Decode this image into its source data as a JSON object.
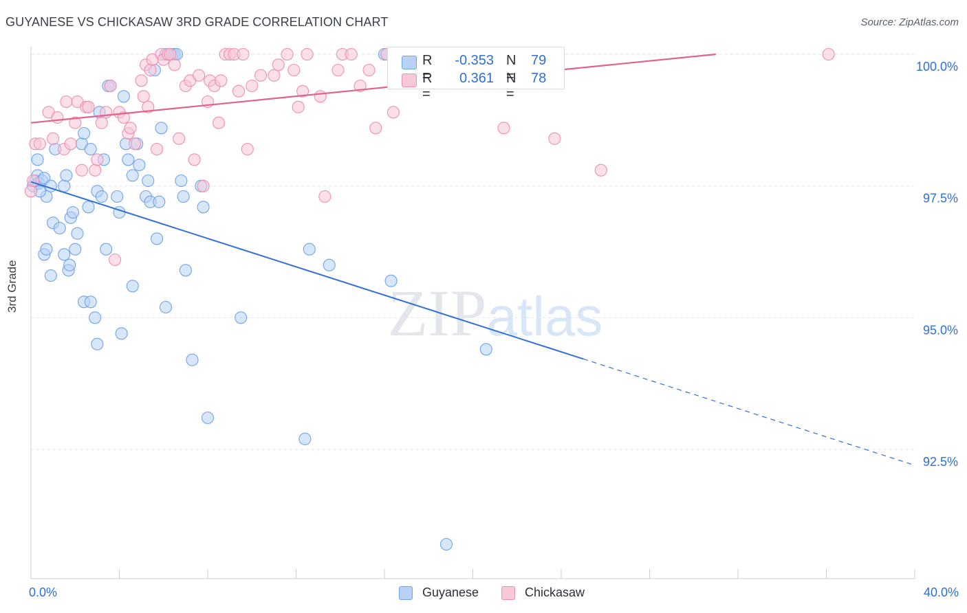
{
  "header": {
    "title": "GUYANESE VS CHICKASAW 3RD GRADE CORRELATION CHART",
    "source": "Source: ZipAtlas.com"
  },
  "colors": {
    "guyanese": "#6fa3ea",
    "guyanese_fill": "#b8d2f6",
    "guyanese_line": "#2f6fd6",
    "chickasaw": "#ee8fb0",
    "chickasaw_fill": "#f8c7d8",
    "chickasaw_line": "#e0628e",
    "accent_text": "#2f6fd6",
    "grid": "#dfe3e8"
  },
  "legend_top": {
    "rows": [
      {
        "r_label": "R =",
        "r_value": "-0.353",
        "n_label": "N =",
        "n_value": "79"
      },
      {
        "r_label": "R =",
        "r_value": "0.361",
        "n_label": "N =",
        "n_value": "78"
      }
    ]
  },
  "legend_bottom": {
    "items": [
      {
        "label": "Guyanese"
      },
      {
        "label": "Chickasaw"
      }
    ]
  },
  "chart_data": {
    "type": "scatter",
    "title": "GUYANESE VS CHICKASAW 3RD GRADE CORRELATION CHART",
    "xlabel": "",
    "ylabel": "3rd Grade",
    "xlim": [
      0,
      40
    ],
    "ylim": [
      90.0,
      100.3
    ],
    "x_tick_labels": [
      "0.0%",
      "40.0%"
    ],
    "y_ticks": [
      100.0,
      97.5,
      95.0,
      92.5
    ],
    "y_tick_labels": [
      "100.0%",
      "97.5%",
      "95.0%",
      "92.5%"
    ],
    "grid": "horizontal dashed",
    "watermark": "ZIPatlas",
    "series": [
      {
        "name": "Guyanese",
        "r": -0.353,
        "n": 79,
        "trend": {
          "x_start": 0,
          "y_start": 97.58,
          "x_solid_end": 25.0,
          "x_end": 40,
          "y_end": 92.2
        },
        "points": [
          [
            0.1,
            97.5
          ],
          [
            0.2,
            97.6
          ],
          [
            0.3,
            97.7
          ],
          [
            0.35,
            97.55
          ],
          [
            0.5,
            97.6
          ],
          [
            0.6,
            97.65
          ],
          [
            0.7,
            97.3
          ],
          [
            0.9,
            97.5
          ],
          [
            0.3,
            98.0
          ],
          [
            0.4,
            97.4
          ],
          [
            1.1,
            98.2
          ],
          [
            1.5,
            97.5
          ],
          [
            1.6,
            97.7
          ],
          [
            1.8,
            96.9
          ],
          [
            1.9,
            97.0
          ],
          [
            2.0,
            96.3
          ],
          [
            2.1,
            96.6
          ],
          [
            2.3,
            98.3
          ],
          [
            2.4,
            98.5
          ],
          [
            2.6,
            97.1
          ],
          [
            2.7,
            98.2
          ],
          [
            3.0,
            97.4
          ],
          [
            3.1,
            98.9
          ],
          [
            3.2,
            97.3
          ],
          [
            3.3,
            98.0
          ],
          [
            3.4,
            96.3
          ],
          [
            3.5,
            99.4
          ],
          [
            3.6,
            99.4
          ],
          [
            3.9,
            97.3
          ],
          [
            4.0,
            97.0
          ],
          [
            4.2,
            99.2
          ],
          [
            4.3,
            98.3
          ],
          [
            4.4,
            98.0
          ],
          [
            4.6,
            97.7
          ],
          [
            4.8,
            98.3
          ],
          [
            4.9,
            97.9
          ],
          [
            5.2,
            97.3
          ],
          [
            5.3,
            97.6
          ],
          [
            5.4,
            97.2
          ],
          [
            5.6,
            99.7
          ],
          [
            5.7,
            96.5
          ],
          [
            5.8,
            97.2
          ],
          [
            5.9,
            98.6
          ],
          [
            6.1,
            100.0
          ],
          [
            6.3,
            100.0
          ],
          [
            6.4,
            100.0
          ],
          [
            6.5,
            100.0
          ],
          [
            6.6,
            100.0
          ],
          [
            6.8,
            97.6
          ],
          [
            6.9,
            97.3
          ],
          [
            7.0,
            95.9
          ],
          [
            7.3,
            94.2
          ],
          [
            7.7,
            97.5
          ],
          [
            7.8,
            97.1
          ],
          [
            8.0,
            93.1
          ],
          [
            9.5,
            95.0
          ],
          [
            12.4,
            92.7
          ],
          [
            12.6,
            96.3
          ],
          [
            13.5,
            96.0
          ],
          [
            16.0,
            100.0
          ],
          [
            16.1,
            100.0
          ],
          [
            16.3,
            95.7
          ],
          [
            18.8,
            90.7
          ],
          [
            20.6,
            94.4
          ],
          [
            0.6,
            96.2
          ],
          [
            0.7,
            96.3
          ],
          [
            0.9,
            95.8
          ],
          [
            1.0,
            96.8
          ],
          [
            1.3,
            96.7
          ],
          [
            1.5,
            96.2
          ],
          [
            1.7,
            95.9
          ],
          [
            1.75,
            96.0
          ],
          [
            2.4,
            95.3
          ],
          [
            2.7,
            95.3
          ],
          [
            2.9,
            95.0
          ],
          [
            3.0,
            94.5
          ],
          [
            4.1,
            94.7
          ],
          [
            4.6,
            95.6
          ],
          [
            6.1,
            95.2
          ]
        ]
      },
      {
        "name": "Chickasaw",
        "r": 0.361,
        "n": 78,
        "trend": {
          "x_start": 0,
          "y_start": 98.7,
          "x_end": 31.0,
          "y_end": 100.0
        },
        "points": [
          [
            0.0,
            97.4
          ],
          [
            0.1,
            97.6
          ],
          [
            0.2,
            98.3
          ],
          [
            0.4,
            98.3
          ],
          [
            0.8,
            98.9
          ],
          [
            1.0,
            98.4
          ],
          [
            1.2,
            98.8
          ],
          [
            1.5,
            98.2
          ],
          [
            1.6,
            99.1
          ],
          [
            1.8,
            98.3
          ],
          [
            2.0,
            98.7
          ],
          [
            2.1,
            99.1
          ],
          [
            2.3,
            97.8
          ],
          [
            2.5,
            99.0
          ],
          [
            2.6,
            99.0
          ],
          [
            2.9,
            97.8
          ],
          [
            3.0,
            98.0
          ],
          [
            3.2,
            98.7
          ],
          [
            3.4,
            98.9
          ],
          [
            3.6,
            99.4
          ],
          [
            3.8,
            96.1
          ],
          [
            4.0,
            98.9
          ],
          [
            4.2,
            98.8
          ],
          [
            4.4,
            98.5
          ],
          [
            4.5,
            98.6
          ],
          [
            4.7,
            98.3
          ],
          [
            5.0,
            99.5
          ],
          [
            5.1,
            99.2
          ],
          [
            5.2,
            99.8
          ],
          [
            5.3,
            99.0
          ],
          [
            5.4,
            99.7
          ],
          [
            5.5,
            99.9
          ],
          [
            5.7,
            98.2
          ],
          [
            5.9,
            100.0
          ],
          [
            6.0,
            99.9
          ],
          [
            6.2,
            100.0
          ],
          [
            6.3,
            100.0
          ],
          [
            6.5,
            99.8
          ],
          [
            6.7,
            98.4
          ],
          [
            7.0,
            99.4
          ],
          [
            7.2,
            99.5
          ],
          [
            7.4,
            98.0
          ],
          [
            7.6,
            99.6
          ],
          [
            7.8,
            97.5
          ],
          [
            8.0,
            99.1
          ],
          [
            8.1,
            99.5
          ],
          [
            8.3,
            99.4
          ],
          [
            8.5,
            98.7
          ],
          [
            8.6,
            99.5
          ],
          [
            8.8,
            100.0
          ],
          [
            9.0,
            100.0
          ],
          [
            9.2,
            100.0
          ],
          [
            9.4,
            99.3
          ],
          [
            9.6,
            100.0
          ],
          [
            9.8,
            98.2
          ],
          [
            10.0,
            99.4
          ],
          [
            10.4,
            99.6
          ],
          [
            11.0,
            99.6
          ],
          [
            11.2,
            99.8
          ],
          [
            11.6,
            100.0
          ],
          [
            11.9,
            99.7
          ],
          [
            12.1,
            99.0
          ],
          [
            12.3,
            99.3
          ],
          [
            12.5,
            100.0
          ],
          [
            13.1,
            99.2
          ],
          [
            13.3,
            97.3
          ],
          [
            13.9,
            99.7
          ],
          [
            14.1,
            100.0
          ],
          [
            14.5,
            100.0
          ],
          [
            14.9,
            99.4
          ],
          [
            15.3,
            99.7
          ],
          [
            15.6,
            98.6
          ],
          [
            16.1,
            100.0
          ],
          [
            16.4,
            98.9
          ],
          [
            21.4,
            98.6
          ],
          [
            23.7,
            98.4
          ],
          [
            25.8,
            97.8
          ],
          [
            36.1,
            100.0
          ]
        ]
      }
    ]
  }
}
